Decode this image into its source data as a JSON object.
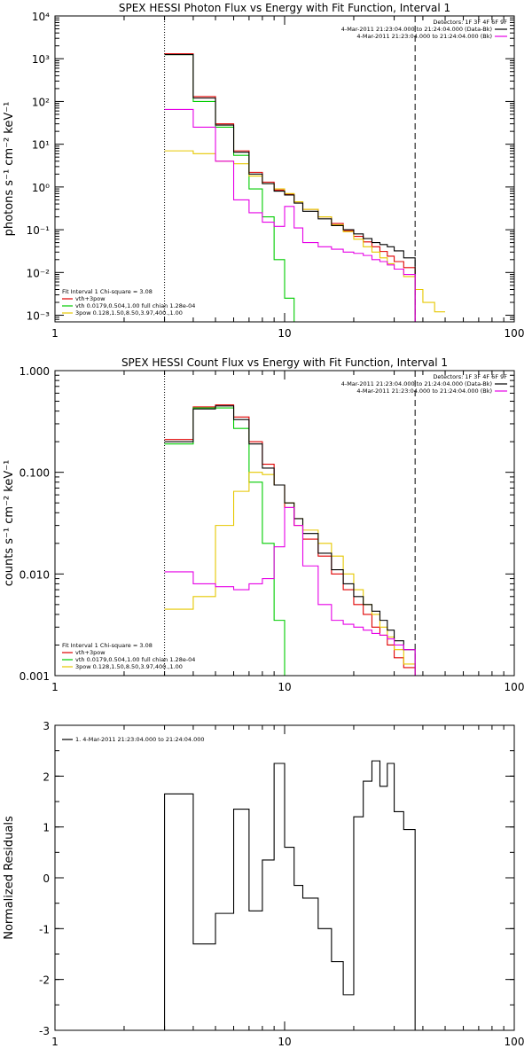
{
  "chart_data": [
    {
      "type": "line",
      "title": "SPEX HESSI Photon Flux vs Energy with Fit Function, Interval 1",
      "xlabel": "",
      "ylabel": "photons s⁻¹ cm⁻² keV⁻¹",
      "xscale": "log",
      "yscale": "log",
      "xlim": [
        1,
        100
      ],
      "ylim": [
        0.0007,
        10000
      ],
      "x_ticks": [
        1,
        10,
        100
      ],
      "x_tick_labels": [
        "1",
        "10",
        "100"
      ],
      "y_ticks": [
        0.001,
        0.01,
        0.1,
        1,
        10,
        100,
        1000,
        10000
      ],
      "y_tick_labels": [
        "10⁻³",
        "10⁻²",
        "10⁻¹",
        "10⁰",
        "10¹",
        "10²",
        "10³",
        "10⁴"
      ],
      "vlines": [
        {
          "x": 3.0,
          "style": "dotted",
          "color": "#000000"
        },
        {
          "x": 37,
          "style": "dashed",
          "color": "#000000"
        }
      ],
      "legend_right": {
        "position": "top-right",
        "header": "Detectors: 1F 3F 4F 6F 9F",
        "items": [
          {
            "label": "4-Mar-2011 21:23:04.000 to 21:24:04.000 (Data-Bk)",
            "color": "#000000"
          },
          {
            "label": "4-Mar-2011 21:23:04.000 to 21:24:04.000 (Bk)",
            "color": "#e600e6"
          }
        ]
      },
      "legend_left": {
        "position": "bottom-left",
        "header": "Fit Interval 1   Chi-square = 3.08",
        "items": [
          {
            "label": "vth+3pow",
            "color": "#e00000"
          },
          {
            "label": "vth 0.0179,0.504,1.00  full chian 1.28e-04",
            "color": "#00cc00"
          },
          {
            "label": "3pow 0.128,1.50,8.50,3.97,400.,1.00",
            "color": "#e6c800"
          }
        ]
      },
      "edges": [
        3,
        4,
        5,
        6,
        7,
        8,
        9,
        10,
        11,
        12,
        14,
        16,
        18,
        20,
        22,
        24,
        26,
        28,
        30,
        33,
        37,
        40,
        45,
        50
      ],
      "series": [
        {
          "name": "vth+3pow",
          "color": "#e00000",
          "values": [
            1300,
            130,
            30,
            7,
            2.2,
            1.3,
            0.85,
            0.68,
            0.45,
            0.3,
            0.2,
            0.14,
            0.095,
            0.07,
            0.052,
            0.04,
            0.031,
            0.024,
            0.018,
            0.013,
            0.0006,
            0.0006,
            0.0006
          ]
        },
        {
          "name": "vth",
          "color": "#00cc00",
          "values": [
            1250,
            100,
            25,
            5.5,
            0.9,
            0.2,
            0.02,
            0.0025,
            0.0006,
            0.0006,
            0.0006,
            0.0006,
            0.0006,
            0.0006,
            0.0006,
            0.0006,
            0.0006,
            0.0006,
            0.0006,
            0.0006,
            0.0006,
            0.0006,
            0.0006
          ]
        },
        {
          "name": "3pow",
          "color": "#e6c800",
          "values": [
            7,
            6,
            4,
            3.5,
            1.8,
            1.2,
            0.9,
            0.7,
            0.45,
            0.3,
            0.2,
            0.13,
            0.09,
            0.06,
            0.04,
            0.03,
            0.022,
            0.016,
            0.012,
            0.008,
            0.004,
            0.002,
            0.0012
          ]
        },
        {
          "name": "Data-Bk",
          "color": "#000000",
          "values": [
            1250,
            120,
            28,
            6.5,
            2.0,
            1.2,
            0.8,
            0.65,
            0.42,
            0.27,
            0.18,
            0.125,
            0.1,
            0.08,
            0.062,
            0.05,
            0.045,
            0.04,
            0.032,
            0.022,
            0.0006,
            0.0006,
            0.0006
          ]
        },
        {
          "name": "Bk",
          "color": "#e600e6",
          "values": [
            65,
            25,
            4,
            0.5,
            0.25,
            0.15,
            0.12,
            0.35,
            0.11,
            0.05,
            0.04,
            0.035,
            0.03,
            0.028,
            0.025,
            0.02,
            0.018,
            0.015,
            0.012,
            0.009,
            0.0006,
            0.0006,
            0.0006
          ]
        }
      ]
    },
    {
      "type": "line",
      "title": "SPEX HESSI Count Flux vs Energy with Fit Function, Interval 1",
      "xlabel": "",
      "ylabel": "counts s⁻¹ cm⁻² keV⁻¹",
      "xscale": "log",
      "yscale": "log",
      "xlim": [
        1,
        100
      ],
      "ylim": [
        0.001,
        1.0
      ],
      "x_ticks": [
        1,
        10,
        100
      ],
      "x_tick_labels": [
        "1",
        "10",
        "100"
      ],
      "y_ticks": [
        0.001,
        0.01,
        0.1,
        1.0
      ],
      "y_tick_labels": [
        "0.001",
        "0.010",
        "0.100",
        "1.000"
      ],
      "vlines": [
        {
          "x": 3.0,
          "style": "dotted",
          "color": "#000000"
        },
        {
          "x": 37,
          "style": "dashed",
          "color": "#000000"
        }
      ],
      "legend_right": {
        "position": "top-right",
        "header": "Detectors: 1F 3F 4F 6F 9F",
        "items": [
          {
            "label": "4-Mar-2011 21:23:04.000 to 21:24:04.000 (Data-Bk)",
            "color": "#000000"
          },
          {
            "label": "4-Mar-2011 21:23:04.000 to 21:24:04.000 (Bk)",
            "color": "#e600e6"
          }
        ]
      },
      "legend_left": {
        "position": "bottom-left",
        "header": "Fit Interval 1   Chi-square = 3.08",
        "items": [
          {
            "label": "vth+3pow",
            "color": "#e00000"
          },
          {
            "label": "vth 0.0179,0.504,1.00  full chian 1.28e-04",
            "color": "#00cc00"
          },
          {
            "label": "3pow 0.128,1.50,8.50,3.97,400.,1.00",
            "color": "#e6c800"
          }
        ]
      },
      "edges": [
        3,
        4,
        5,
        6,
        7,
        8,
        9,
        10,
        11,
        12,
        14,
        16,
        18,
        20,
        22,
        24,
        26,
        28,
        30,
        33,
        37,
        40,
        45,
        50
      ],
      "series": [
        {
          "name": "vth+3pow",
          "color": "#e00000",
          "values": [
            0.21,
            0.44,
            0.46,
            0.35,
            0.2,
            0.12,
            0.075,
            0.045,
            0.03,
            0.022,
            0.015,
            0.01,
            0.007,
            0.005,
            0.004,
            0.003,
            0.0025,
            0.002,
            0.0015,
            0.0012,
            0.0008,
            0.0008,
            0.0008
          ]
        },
        {
          "name": "vth",
          "color": "#00cc00",
          "values": [
            0.19,
            0.43,
            0.43,
            0.27,
            0.08,
            0.02,
            0.0035,
            0.0008,
            0.0008,
            0.0008,
            0.0008,
            0.0008,
            0.0008,
            0.0008,
            0.0008,
            0.0008,
            0.0008,
            0.0008,
            0.0008,
            0.0008,
            0.0008,
            0.0008,
            0.0008
          ]
        },
        {
          "name": "3pow",
          "color": "#e6c800",
          "values": [
            0.0045,
            0.006,
            0.03,
            0.065,
            0.1,
            0.095,
            0.075,
            0.05,
            0.035,
            0.027,
            0.02,
            0.015,
            0.01,
            0.007,
            0.005,
            0.004,
            0.003,
            0.0024,
            0.0018,
            0.0013,
            0.0009,
            0.0008,
            0.0008
          ]
        },
        {
          "name": "Data-Bk",
          "color": "#000000",
          "values": [
            0.2,
            0.42,
            0.45,
            0.33,
            0.19,
            0.11,
            0.075,
            0.05,
            0.035,
            0.025,
            0.016,
            0.011,
            0.008,
            0.006,
            0.005,
            0.0043,
            0.0035,
            0.0028,
            0.0022,
            0.0018,
            0.0008,
            0.0008,
            0.0008
          ]
        },
        {
          "name": "Bk",
          "color": "#e600e6",
          "values": [
            0.0105,
            0.008,
            0.0075,
            0.007,
            0.008,
            0.009,
            0.0185,
            0.045,
            0.03,
            0.012,
            0.005,
            0.0035,
            0.0032,
            0.003,
            0.0028,
            0.0026,
            0.0025,
            0.0023,
            0.002,
            0.0018,
            0.0008,
            0.0008,
            0.0008
          ]
        }
      ]
    },
    {
      "type": "line",
      "title": "",
      "xlabel": "",
      "ylabel": "Normalized Residuals",
      "xscale": "log",
      "yscale": "linear",
      "xlim": [
        1,
        100
      ],
      "ylim": [
        -3,
        3
      ],
      "x_ticks": [
        1,
        10,
        100
      ],
      "x_tick_labels": [
        "1",
        "10",
        "100"
      ],
      "y_ticks": [
        -3,
        -2,
        -1,
        0,
        1,
        2,
        3
      ],
      "y_tick_labels": [
        "-3",
        "-2",
        "-1",
        "0",
        "1",
        "2",
        "3"
      ],
      "legend_left": {
        "position": "top-left",
        "header": "",
        "items": [
          {
            "label": "1.  4-Mar-2011 21:23:04.000 to 21:24:04.000",
            "color": "#000000"
          }
        ]
      },
      "edges": [
        3,
        4,
        5,
        6,
        7,
        8,
        9,
        10,
        11,
        12,
        14,
        16,
        18,
        20,
        22,
        24,
        26,
        28,
        30,
        33,
        37
      ],
      "series": [
        {
          "name": "1.  4-Mar-2011 21:23:04.000 to 21:24:04.000",
          "color": "#000000",
          "values": [
            1.65,
            -1.3,
            -0.7,
            1.35,
            -0.65,
            0.35,
            2.25,
            0.6,
            -0.15,
            -0.4,
            -1.0,
            -1.65,
            -2.3,
            1.2,
            1.9,
            2.3,
            1.8,
            2.25,
            1.3,
            0.95
          ],
          "floor_edges": true
        }
      ]
    }
  ]
}
